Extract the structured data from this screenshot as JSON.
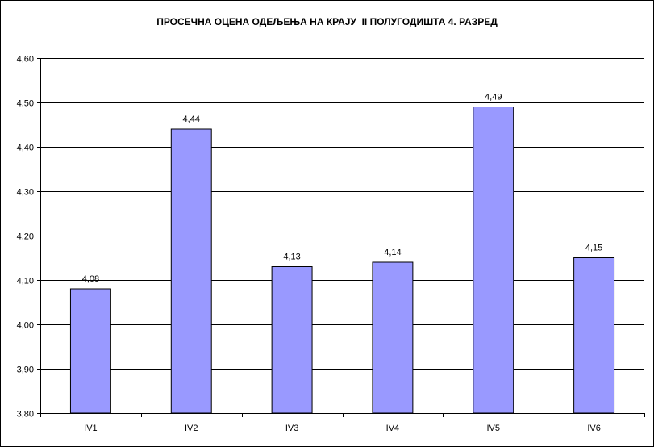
{
  "colors": {
    "bar_fill": "#9999FF",
    "bar_stroke": "#000000",
    "gridline": "#000000",
    "background": "#FFFFFF"
  },
  "chart_data": {
    "type": "bar",
    "title": "ПРОСЕЧНА ОЦЕНА ОДЕЉЕЊА НА КРАЈУ  II ПОЛУГОДИШТА 4. РАЗРЕД",
    "xlabel": "",
    "ylabel": "",
    "categories": [
      "IV1",
      "IV2",
      "IV3",
      "IV4",
      "IV5",
      "IV6"
    ],
    "values": [
      4.08,
      4.44,
      4.13,
      4.14,
      4.49,
      4.15
    ],
    "data_labels": [
      "4,08",
      "4,44",
      "4,13",
      "4,14",
      "4,49",
      "4,15"
    ],
    "ylim": [
      3.8,
      4.6
    ],
    "yticks": [
      3.8,
      3.9,
      4.0,
      4.1,
      4.2,
      4.3,
      4.4,
      4.5,
      4.6
    ],
    "ytick_labels": [
      "3,80",
      "3,90",
      "4,00",
      "4,10",
      "4,20",
      "4,30",
      "4,40",
      "4,50",
      "4,60"
    ],
    "grid": true,
    "legend": "none"
  }
}
